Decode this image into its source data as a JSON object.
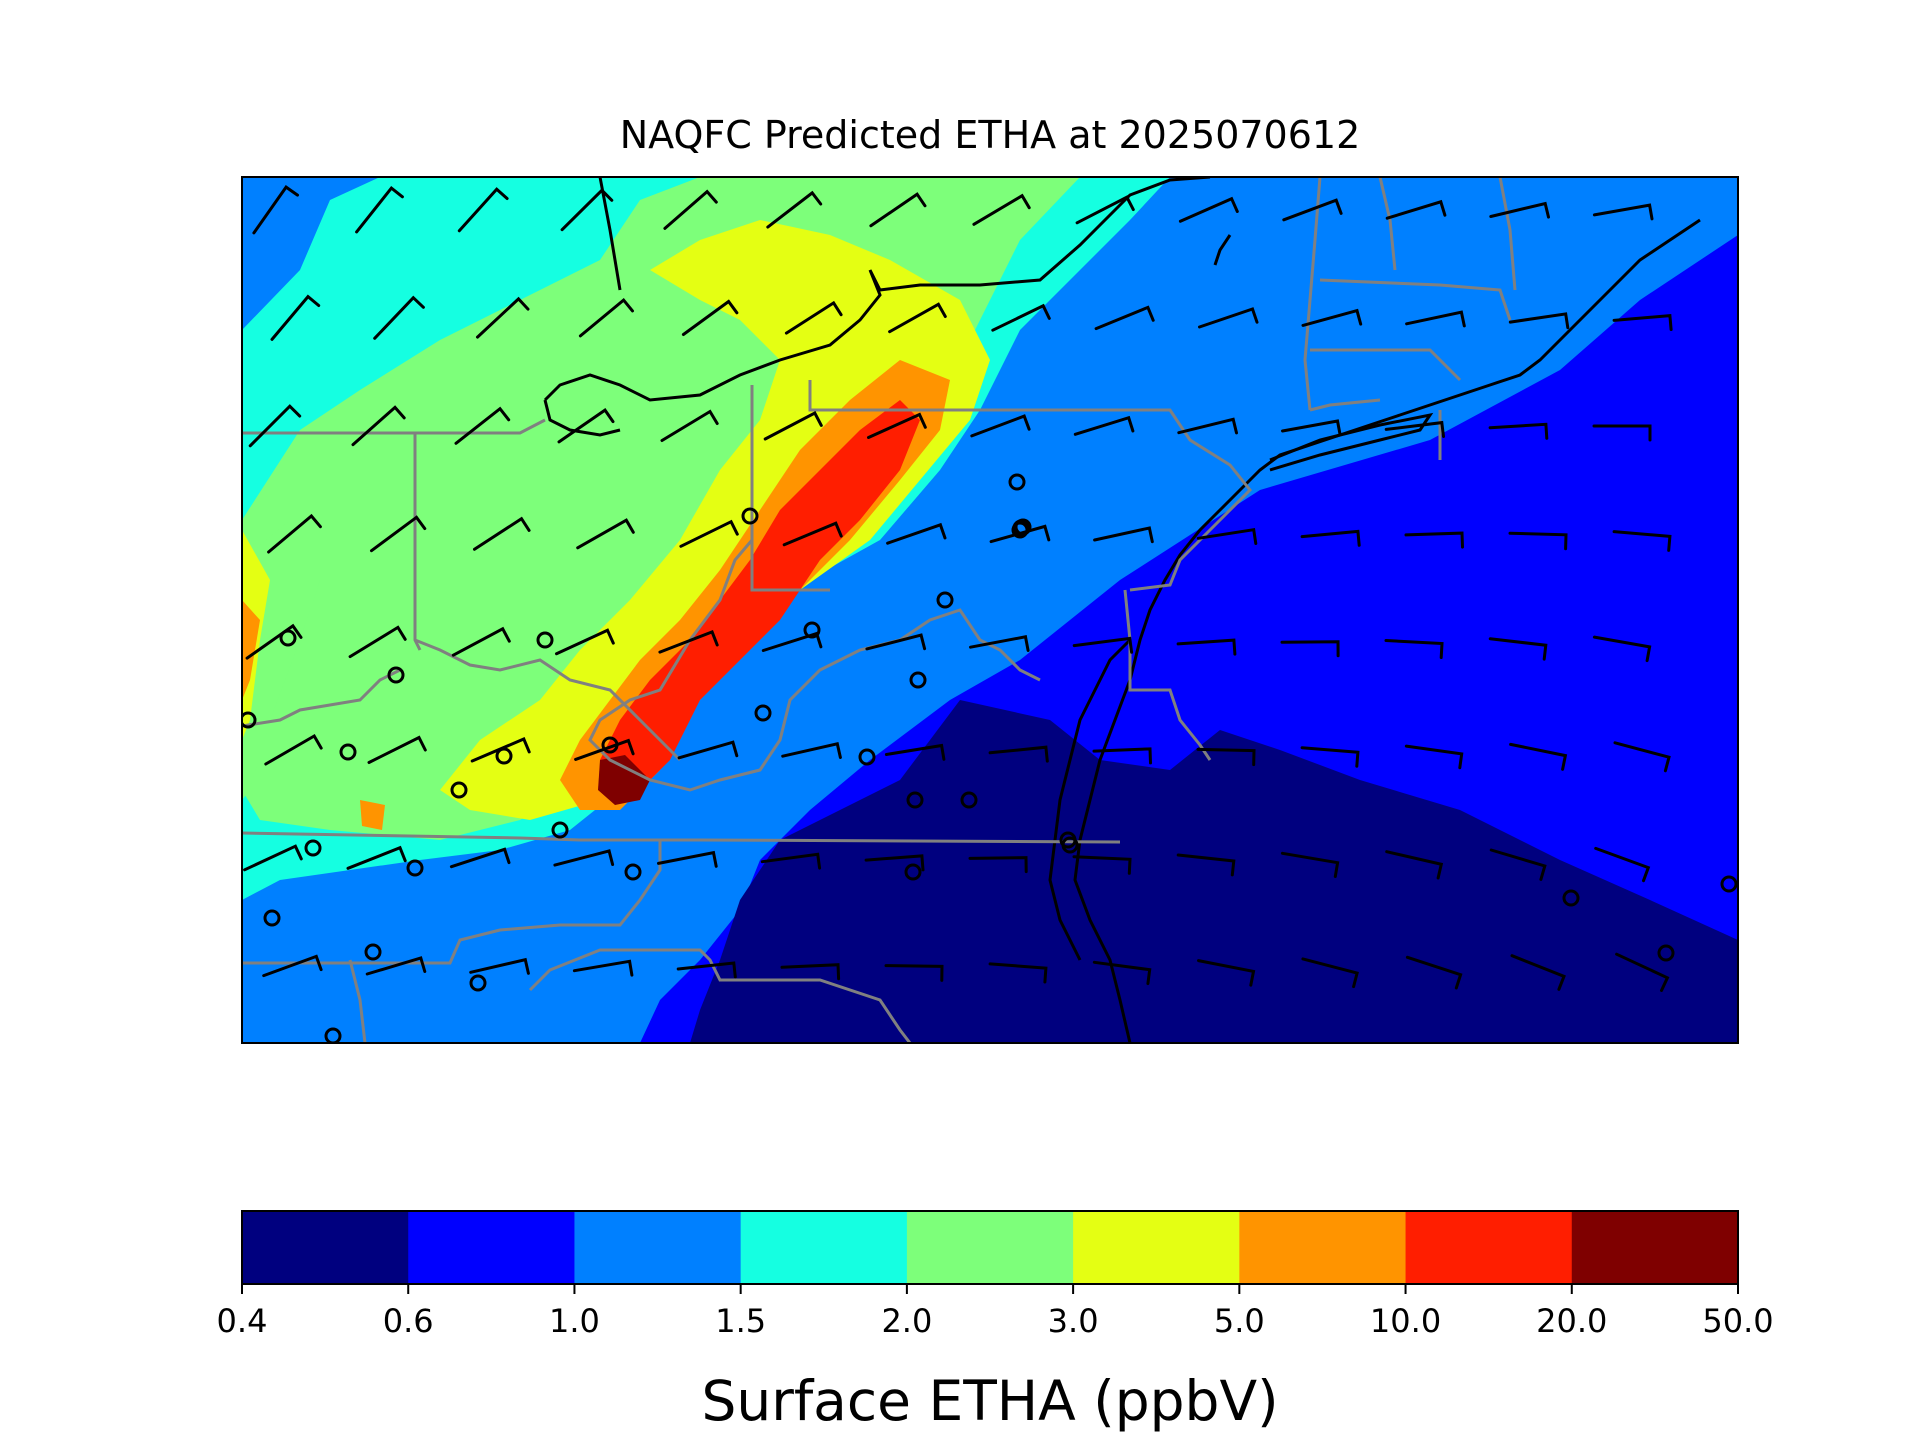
{
  "title": "NAQFC Predicted ETHA at 2025070612",
  "colorbar": {
    "label": "Surface ETHA (ppbV)",
    "ticks": [
      "0.4",
      "0.6",
      "1.0",
      "1.5",
      "2.0",
      "3.0",
      "5.0",
      "10.0",
      "20.0",
      "50.0"
    ],
    "colors": [
      "#00007f",
      "#0000ff",
      "#0080ff",
      "#15ffe1",
      "#7dff7a",
      "#e4ff13",
      "#ff9400",
      "#ff1e00",
      "#7f0000"
    ]
  },
  "map": {
    "field": "Surface ETHA",
    "units": "ppbV",
    "region": "Mid-Atlantic / Northeastern United States",
    "background_level": "0.6-1.0",
    "layers": [
      "concentration-field",
      "coastline",
      "state-borders",
      "wind-barbs",
      "station-markers"
    ]
  }
}
